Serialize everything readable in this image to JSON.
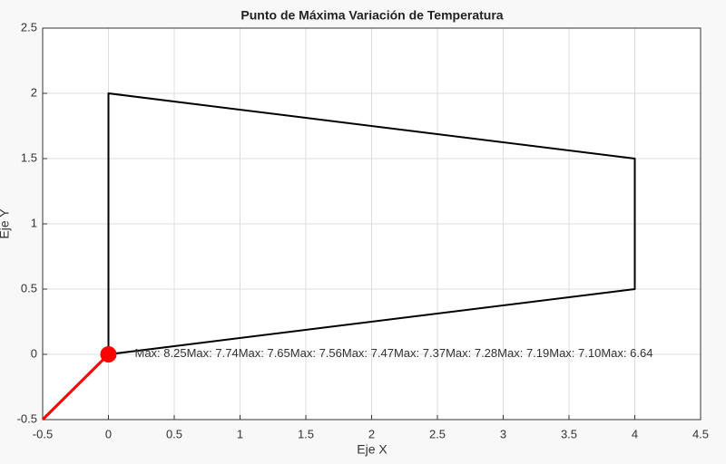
{
  "chart_data": {
    "type": "line",
    "title": "Punto de Máxima Variación de Temperatura",
    "x_label": "Eje X",
    "y_label": "Eje Y",
    "series": [
      {
        "x": [
          0,
          0,
          4,
          4,
          0
        ],
        "y": [
          0,
          2,
          1.5,
          0.5,
          0
        ],
        "color": "#000000",
        "marker": false
      },
      {
        "x": [
          -0.5,
          0
        ],
        "y": [
          -0.5,
          0
        ],
        "color": "#ff0000",
        "marker": false
      },
      {
        "x": [
          0
        ],
        "y": [
          0
        ],
        "color": "#ff0000",
        "marker": true
      }
    ],
    "annotations": [
      "Max: 8.25",
      "Max: 7.74",
      "Max: 7.65",
      "Max: 7.56",
      "Max: 7.47",
      "Max: 7.37",
      "Max: 7.28",
      "Max: 7.19",
      "Max: 7.10",
      "Max: 6.64"
    ],
    "xlim": [
      -0.5,
      4.5
    ],
    "ylim": [
      -0.5,
      2.5
    ],
    "xticks": [
      -0.5,
      0,
      0.5,
      1,
      1.5,
      2,
      2.5,
      3,
      3.5,
      4,
      4.5
    ],
    "yticks": [
      -0.5,
      0,
      0.5,
      1,
      1.5,
      2,
      2.5
    ],
    "grid": true
  }
}
